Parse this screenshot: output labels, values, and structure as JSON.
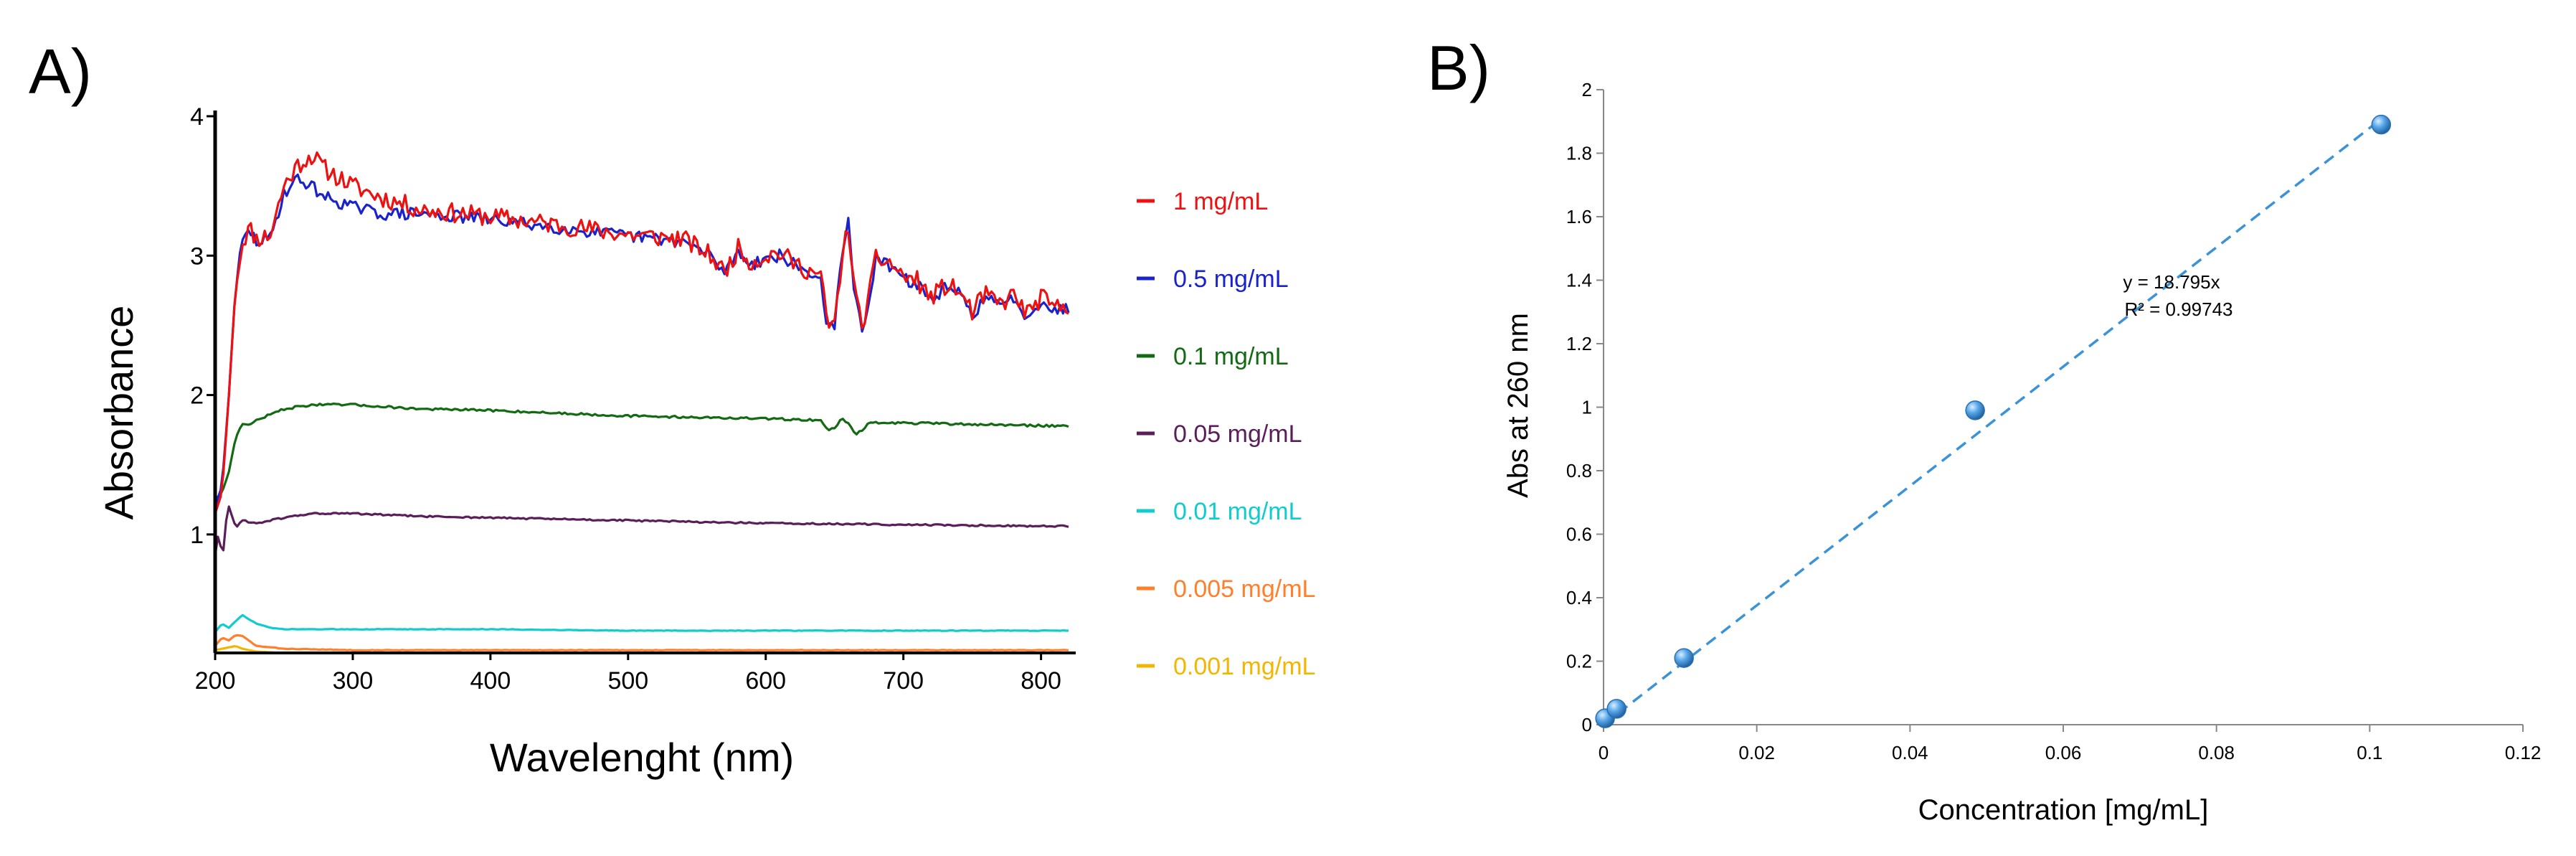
{
  "panelA": {
    "label": "A)",
    "chart_data": {
      "type": "line",
      "title": "",
      "xlabel": "Wavelenght (nm)",
      "ylabel": "Absorbance",
      "xlim": [
        200,
        820
      ],
      "ylim": [
        0.15,
        4
      ],
      "xticks": [
        200,
        300,
        400,
        500,
        600,
        700,
        800
      ],
      "yticks": [
        1,
        2,
        3,
        4
      ],
      "legend_position": "right",
      "series": [
        {
          "name": "1 mg/mL",
          "color": "#ee1111",
          "noise": 0.07,
          "seed": 11,
          "x": [
            200,
            205,
            210,
            215,
            220,
            225,
            230,
            240,
            250,
            260,
            270,
            280,
            300,
            320,
            350,
            400,
            450,
            500,
            540,
            560,
            570,
            580,
            590,
            600,
            610,
            620,
            630,
            640,
            645,
            650,
            655,
            660,
            665,
            670,
            675,
            680,
            690,
            700,
            710,
            720,
            730,
            740,
            750,
            760,
            770,
            780,
            790,
            800,
            810,
            820
          ],
          "y": [
            1.15,
            1.3,
            2.0,
            2.8,
            3.1,
            3.2,
            3.12,
            3.15,
            3.5,
            3.65,
            3.72,
            3.62,
            3.5,
            3.42,
            3.33,
            3.28,
            3.22,
            3.15,
            3.12,
            3.0,
            2.88,
            3.05,
            2.95,
            3.0,
            3.02,
            2.95,
            2.9,
            2.85,
            2.5,
            2.5,
            2.95,
            3.22,
            2.7,
            2.5,
            2.7,
            2.98,
            2.95,
            2.85,
            2.82,
            2.7,
            2.78,
            2.75,
            2.6,
            2.72,
            2.65,
            2.72,
            2.58,
            2.7,
            2.62,
            2.65
          ]
        },
        {
          "name": "0.5 mg/mL",
          "color": "#1a22cc",
          "noise": 0.045,
          "seed": 29,
          "x": [
            200,
            205,
            210,
            215,
            220,
            225,
            230,
            240,
            250,
            260,
            270,
            280,
            300,
            320,
            350,
            400,
            450,
            500,
            540,
            560,
            570,
            580,
            590,
            600,
            610,
            620,
            630,
            640,
            645,
            650,
            655,
            660,
            665,
            670,
            675,
            680,
            690,
            700,
            710,
            720,
            730,
            740,
            750,
            760,
            770,
            780,
            790,
            800,
            810,
            820
          ],
          "y": [
            1.2,
            1.35,
            2.0,
            2.8,
            3.1,
            3.18,
            3.1,
            3.12,
            3.45,
            3.55,
            3.5,
            3.42,
            3.35,
            3.3,
            3.3,
            3.26,
            3.2,
            3.14,
            3.1,
            3.0,
            2.88,
            3.03,
            2.94,
            2.98,
            3.0,
            2.94,
            2.88,
            2.83,
            2.48,
            2.5,
            2.95,
            3.25,
            2.68,
            2.48,
            2.68,
            2.96,
            2.93,
            2.83,
            2.8,
            2.68,
            2.76,
            2.73,
            2.58,
            2.7,
            2.63,
            2.7,
            2.56,
            2.68,
            2.6,
            2.63
          ]
        },
        {
          "name": "0.1 mg/mL",
          "color": "#126a12",
          "noise": 0.008,
          "seed": 47,
          "x": [
            200,
            205,
            210,
            215,
            220,
            225,
            230,
            240,
            250,
            270,
            300,
            350,
            400,
            500,
            600,
            640,
            645,
            650,
            655,
            660,
            665,
            670,
            675,
            680,
            700,
            750,
            800,
            820
          ],
          "y": [
            1.25,
            1.3,
            1.45,
            1.7,
            1.8,
            1.78,
            1.82,
            1.86,
            1.9,
            1.93,
            1.93,
            1.9,
            1.89,
            1.85,
            1.83,
            1.82,
            1.75,
            1.76,
            1.83,
            1.8,
            1.72,
            1.75,
            1.8,
            1.8,
            1.8,
            1.79,
            1.78,
            1.78
          ]
        },
        {
          "name": "0.05 mg/mL",
          "color": "#5a1e5a",
          "noise": 0.006,
          "seed": 61,
          "x": [
            200,
            203,
            205,
            208,
            210,
            215,
            220,
            230,
            250,
            270,
            300,
            350,
            400,
            500,
            600,
            700,
            800,
            820
          ],
          "y": [
            0.85,
            1.05,
            0.78,
            1.1,
            1.2,
            1.05,
            1.1,
            1.08,
            1.12,
            1.15,
            1.15,
            1.13,
            1.12,
            1.1,
            1.08,
            1.07,
            1.06,
            1.06
          ]
        },
        {
          "name": "0.01 mg/mL",
          "color": "#11cccc",
          "noise": 0.002,
          "seed": 73,
          "x": [
            200,
            205,
            210,
            215,
            220,
            230,
            240,
            250,
            300,
            400,
            500,
            600,
            700,
            820
          ],
          "y": [
            0.3,
            0.36,
            0.33,
            0.38,
            0.42,
            0.36,
            0.33,
            0.32,
            0.32,
            0.32,
            0.31,
            0.31,
            0.31,
            0.31
          ]
        },
        {
          "name": "0.005 mg/mL",
          "color": "#ff7f2a",
          "noise": 0.002,
          "seed": 83,
          "x": [
            200,
            205,
            210,
            215,
            220,
            230,
            250,
            300,
            400,
            500,
            600,
            700,
            820
          ],
          "y": [
            0.2,
            0.26,
            0.24,
            0.28,
            0.27,
            0.2,
            0.18,
            0.17,
            0.17,
            0.17,
            0.17,
            0.17,
            0.17
          ]
        },
        {
          "name": "0.001 mg/mL",
          "color": "#f2b600",
          "noise": 0.001,
          "seed": 97,
          "x": [
            200,
            205,
            210,
            215,
            220,
            230,
            250,
            300,
            400,
            500,
            600,
            700,
            820
          ],
          "y": [
            0.17,
            0.18,
            0.19,
            0.2,
            0.18,
            0.16,
            0.15,
            0.15,
            0.15,
            0.15,
            0.15,
            0.15,
            0.15
          ]
        }
      ]
    }
  },
  "panelB": {
    "label": "B)",
    "chart_data": {
      "type": "scatter",
      "title": "",
      "xlabel": "Concentration [mg/mL]",
      "ylabel": "Abs at 260 nm",
      "xlim": [
        0,
        0.12
      ],
      "ylim": [
        0,
        2
      ],
      "xticks": [
        0,
        0.02,
        0.04,
        0.06,
        0.08,
        0.1,
        0.12
      ],
      "xtick_labels": [
        "0",
        "0.02",
        "0.04",
        "0.06",
        "0.08",
        "0.1",
        "0.12"
      ],
      "yticks": [
        0,
        0.2,
        0.4,
        0.6,
        0.8,
        1,
        1.2,
        1.4,
        1.6,
        1.8,
        2
      ],
      "ytick_labels": [
        "0",
        "0.2",
        "0.4",
        "0.6",
        "0.8",
        "1",
        "1.2",
        "1.4",
        "1.6",
        "1.8",
        "2"
      ],
      "points": [
        {
          "x": 0.0002,
          "y": 0.02
        },
        {
          "x": 0.0017,
          "y": 0.05
        },
        {
          "x": 0.0105,
          "y": 0.21
        },
        {
          "x": 0.0485,
          "y": 0.99
        },
        {
          "x": 0.1015,
          "y": 1.89
        }
      ],
      "trendline": {
        "slope": 18.795,
        "x_range": [
          0,
          0.1015
        ],
        "equation": "y = 18.795x",
        "r2": "R² = 0.99743",
        "color": "#3a93d6"
      },
      "marker_color": "#4a9be0"
    }
  }
}
